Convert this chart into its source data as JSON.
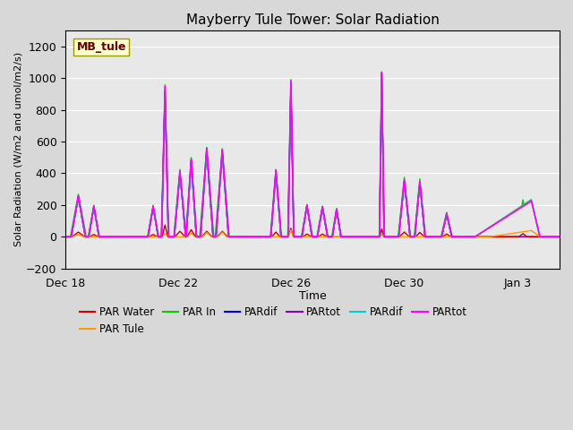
{
  "title": "Mayberry Tule Tower: Solar Radiation",
  "ylabel": "Solar Radiation (W/m2 and umol/m2/s)",
  "xlabel": "Time",
  "ylim": [
    -200,
    1300
  ],
  "yticks": [
    -200,
    0,
    200,
    400,
    600,
    800,
    1000,
    1200
  ],
  "fig_bg_color": "#d8d8d8",
  "plot_bg_color": "#e8e8e8",
  "legend_label": "MB_tule",
  "series": [
    {
      "label": "PAR Water",
      "color": "#cc0000"
    },
    {
      "label": "PAR Tule",
      "color": "#ff9900"
    },
    {
      "label": "PAR In",
      "color": "#00cc00"
    },
    {
      "label": "PARdif",
      "color": "#0000dd"
    },
    {
      "label": "PARtot",
      "color": "#8800cc"
    },
    {
      "label": "PARdif",
      "color": "#00cccc"
    },
    {
      "label": "PARtot",
      "color": "#ff00ff"
    }
  ],
  "xlim_days": [
    0,
    17.5
  ],
  "xtick_days": [
    0,
    4,
    8,
    12,
    16
  ],
  "xtick_labels": [
    "Dec 18",
    "Dec 22",
    "Dec 26",
    "Dec 30",
    "Jan 3"
  ]
}
